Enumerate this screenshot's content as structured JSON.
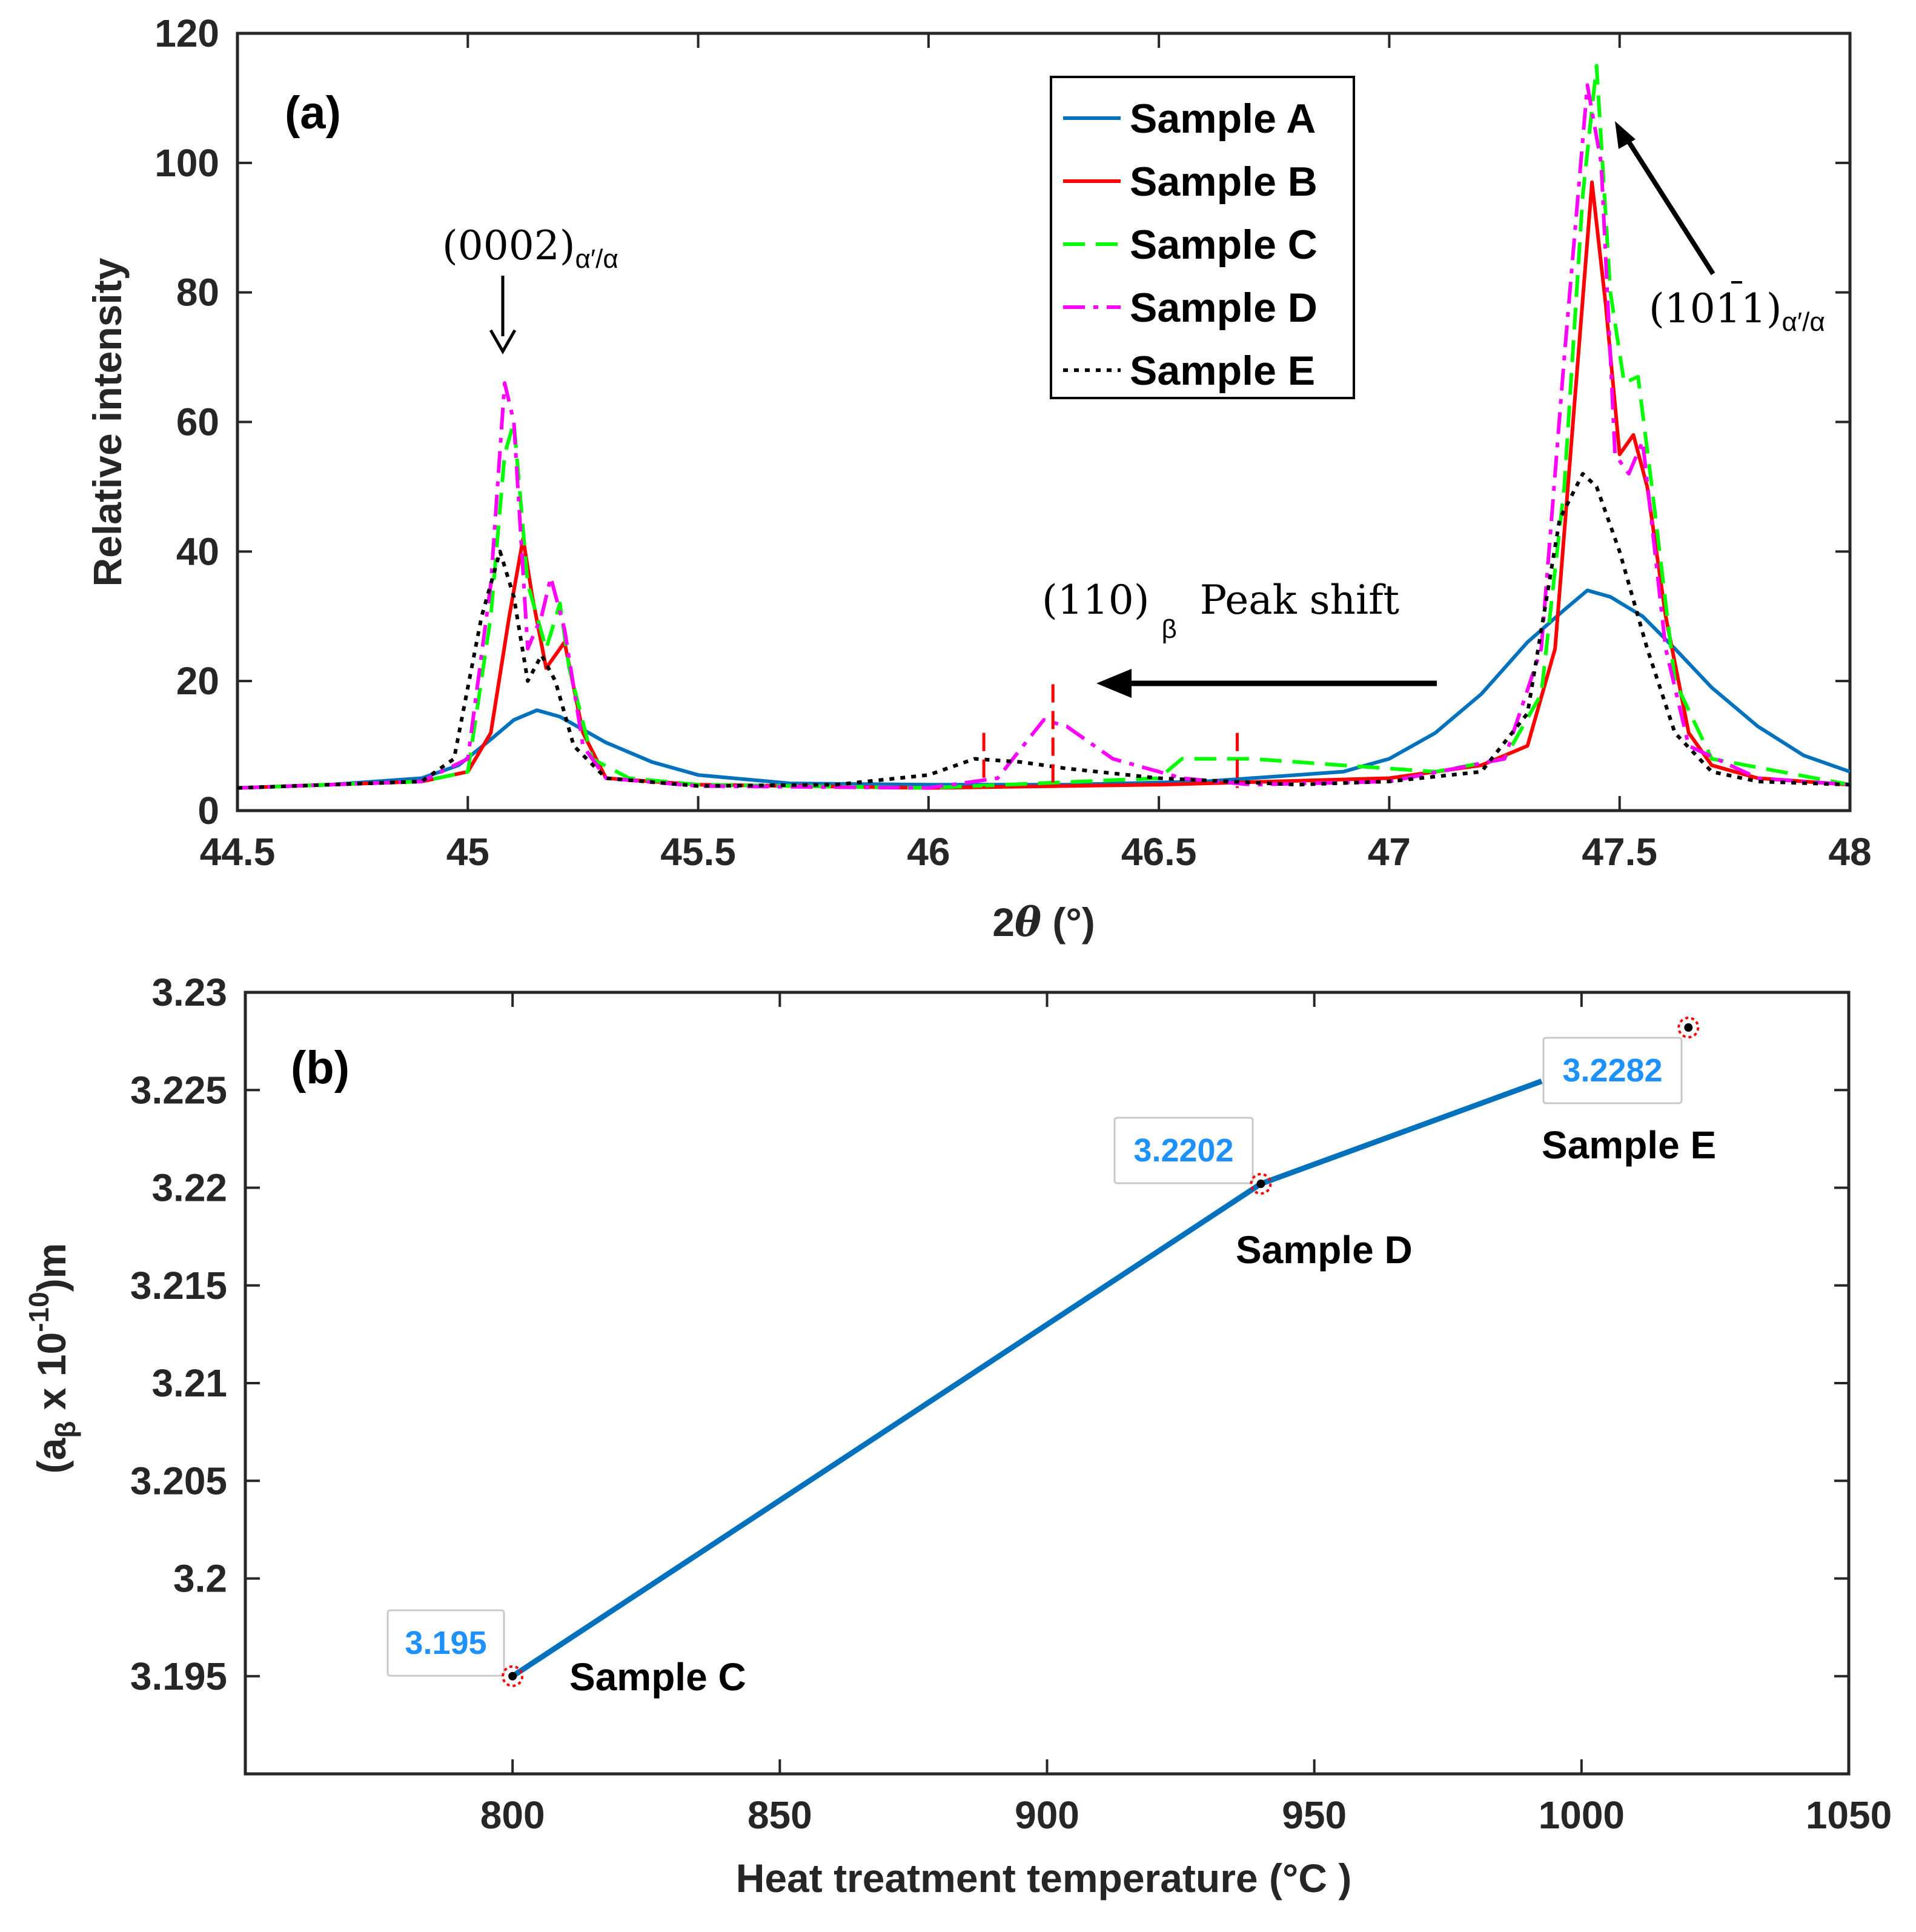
{
  "chart_data": [
    {
      "type": "line",
      "panel_label": "(a)",
      "xlabel_theta_prefix": "2",
      "xlabel_theta_symbol": "θ",
      "xlabel_unit": " (°)",
      "ylabel": "Relative intensity",
      "xlim": [
        44.5,
        48
      ],
      "ylim": [
        0,
        120
      ],
      "x_ticks": [
        "44.5",
        "45",
        "45.5",
        "46",
        "46.5",
        "47",
        "47.5",
        "48"
      ],
      "y_ticks": [
        "0",
        "20",
        "40",
        "60",
        "80",
        "100",
        "120"
      ],
      "series": [
        {
          "name": "Sample A",
          "color": "#0072BD",
          "dash": "solid",
          "x": [
            44.5,
            44.7,
            44.9,
            44.98,
            45.05,
            45.1,
            45.15,
            45.2,
            45.3,
            45.4,
            45.5,
            45.7,
            46.0,
            46.3,
            46.6,
            46.9,
            47.0,
            47.1,
            47.2,
            47.3,
            47.38,
            47.43,
            47.48,
            47.55,
            47.62,
            47.7,
            47.8,
            47.9,
            48.0
          ],
          "y": [
            3.5,
            4,
            5,
            7,
            11,
            14,
            15.5,
            14.5,
            10.5,
            7.5,
            5.5,
            4.2,
            4,
            4,
            4.5,
            6,
            8,
            12,
            18,
            26,
            31,
            34,
            33,
            30,
            25,
            19,
            13,
            8.5,
            6
          ]
        },
        {
          "name": "Sample B",
          "color": "#FF0000",
          "dash": "solid",
          "x": [
            44.5,
            44.9,
            45.0,
            45.05,
            45.09,
            45.12,
            45.14,
            45.17,
            45.21,
            45.25,
            45.3,
            45.5,
            46.0,
            46.5,
            47.0,
            47.2,
            47.3,
            47.36,
            47.41,
            47.44,
            47.47,
            47.5,
            47.53,
            47.56,
            47.6,
            47.65,
            47.7,
            47.8,
            48.0
          ],
          "y": [
            3.5,
            4.5,
            6,
            12,
            30,
            42,
            33,
            22,
            26,
            12,
            5,
            4,
            3.5,
            4,
            5,
            7,
            10,
            25,
            70,
            97,
            78,
            55,
            58,
            50,
            30,
            12,
            7,
            5,
            4
          ]
        },
        {
          "name": "Sample C",
          "color": "#00FF00",
          "dash": "dashed",
          "x": [
            44.5,
            44.9,
            45.0,
            45.05,
            45.08,
            45.1,
            45.13,
            45.17,
            45.2,
            45.22,
            45.27,
            45.35,
            45.5,
            46.0,
            46.5,
            46.55,
            46.7,
            46.9,
            47.1,
            47.25,
            47.33,
            47.38,
            47.42,
            47.45,
            47.48,
            47.51,
            47.54,
            47.57,
            47.62,
            47.7,
            48.0
          ],
          "y": [
            3.5,
            4.5,
            6,
            30,
            55,
            60,
            35,
            25,
            32,
            22,
            8,
            5,
            4,
            3.5,
            5,
            8,
            8,
            7,
            6,
            8,
            18,
            50,
            95,
            115,
            80,
            66,
            67,
            50,
            20,
            8,
            4
          ]
        },
        {
          "name": "Sample D",
          "color": "#FF00FF",
          "dash": "dashdot",
          "x": [
            44.5,
            44.9,
            45.0,
            45.05,
            45.08,
            45.1,
            45.13,
            45.16,
            45.18,
            45.21,
            45.25,
            45.3,
            45.5,
            46.0,
            46.15,
            46.25,
            46.3,
            46.4,
            46.55,
            46.7,
            47.0,
            47.25,
            47.33,
            47.38,
            47.43,
            47.46,
            47.49,
            47.52,
            47.55,
            47.6,
            47.65,
            47.8,
            48.0
          ],
          "y": [
            3.5,
            4.5,
            8,
            35,
            66,
            60,
            25,
            30,
            36,
            28,
            10,
            5,
            3.8,
            3.5,
            5,
            14,
            13,
            8,
            5,
            4,
            4.5,
            8,
            25,
            70,
            112,
            100,
            55,
            52,
            57,
            25,
            10,
            5,
            4
          ]
        },
        {
          "name": "Sample E",
          "color": "#000000",
          "dash": "dotted",
          "x": [
            44.5,
            44.9,
            44.97,
            45.03,
            45.07,
            45.1,
            45.13,
            45.16,
            45.19,
            45.23,
            45.3,
            45.5,
            45.8,
            46.0,
            46.1,
            46.2,
            46.3,
            46.5,
            46.8,
            47.0,
            47.2,
            47.3,
            47.37,
            47.42,
            47.45,
            47.5,
            47.56,
            47.62,
            47.7,
            47.8,
            48.0
          ],
          "y": [
            3.5,
            4.5,
            8,
            30,
            40,
            33,
            20,
            24,
            20,
            10,
            5,
            3.8,
            4,
            5.5,
            8,
            7.5,
            6.5,
            5,
            4,
            4.5,
            6,
            15,
            45,
            52,
            50,
            40,
            25,
            12,
            6,
            4.5,
            4
          ]
        }
      ],
      "legend": [
        "Sample A",
        "Sample B",
        "Sample C",
        "Sample D",
        "Sample E"
      ],
      "legend_position": "top-right",
      "annotations": {
        "peak_0002_main": "(0002)",
        "peak_0002_sub": "α′/α",
        "peak_1011_main": "(1011)",
        "peak_1011_sub": "α′/α",
        "peak_110_main": "(110)",
        "peak_110_sub": "β",
        "shift_text": "Peak shift",
        "marker_x": [
          46.12,
          46.27,
          46.67
        ]
      }
    },
    {
      "type": "line",
      "panel_label": "(b)",
      "xlabel": "Heat treatment temperature (°C )",
      "ylabel_main": "(a",
      "ylabel_sub": "β",
      "ylabel_mid": " x 10",
      "ylabel_sup": "-10",
      "ylabel_end": ")m",
      "xlim": [
        750,
        1050
      ],
      "ylim": [
        3.19,
        3.23
      ],
      "x_ticks": [
        "800",
        "850",
        "900",
        "950",
        "1000",
        "1050"
      ],
      "y_ticks": [
        "3.195",
        "3.2",
        "3.205",
        "3.21",
        "3.215",
        "3.22",
        "3.225",
        "3.23"
      ],
      "line_color": "#0072BD",
      "points": [
        {
          "label": "Sample C",
          "x": 800,
          "y": 3.195,
          "tip": "3.195"
        },
        {
          "label": "Sample D",
          "x": 940,
          "y": 3.2202,
          "tip": "3.2202"
        },
        {
          "label": "Sample E",
          "x": 1020,
          "y": 3.2282,
          "tip": "3.2282"
        }
      ],
      "line_x": [
        800,
        940,
        1020
      ],
      "line_y": [
        3.195,
        3.2202,
        3.2282
      ]
    }
  ]
}
